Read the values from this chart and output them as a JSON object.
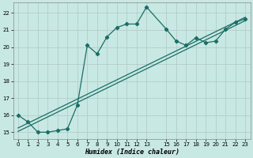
{
  "xlabel": "Humidex (Indice chaleur)",
  "background_color": "#c8e8e4",
  "grid_color": "#b0c8c4",
  "line_color": "#1a6e64",
  "xlim": [
    -0.5,
    23.5
  ],
  "ylim": [
    14.6,
    22.6
  ],
  "yticks": [
    15,
    16,
    17,
    18,
    19,
    20,
    21,
    22
  ],
  "xticks": [
    0,
    1,
    2,
    3,
    4,
    5,
    6,
    7,
    8,
    9,
    10,
    11,
    12,
    13,
    15,
    16,
    17,
    18,
    19,
    20,
    21,
    22,
    23
  ],
  "curve1_x": [
    0,
    1,
    2,
    3,
    4,
    5,
    6,
    7,
    8,
    9,
    10,
    11,
    12,
    13,
    15,
    16,
    17,
    18,
    19,
    20,
    21,
    22,
    23
  ],
  "curve1_y": [
    16.0,
    15.6,
    15.0,
    15.0,
    15.1,
    15.2,
    16.6,
    20.1,
    19.6,
    20.6,
    21.15,
    21.35,
    21.35,
    22.35,
    21.05,
    20.35,
    20.1,
    20.55,
    20.25,
    20.35,
    21.05,
    21.45,
    21.65
  ],
  "line1_x": [
    0,
    23
  ],
  "line1_y": [
    15.05,
    21.55
  ],
  "line2_x": [
    0,
    23
  ],
  "line2_y": [
    15.25,
    21.75
  ]
}
